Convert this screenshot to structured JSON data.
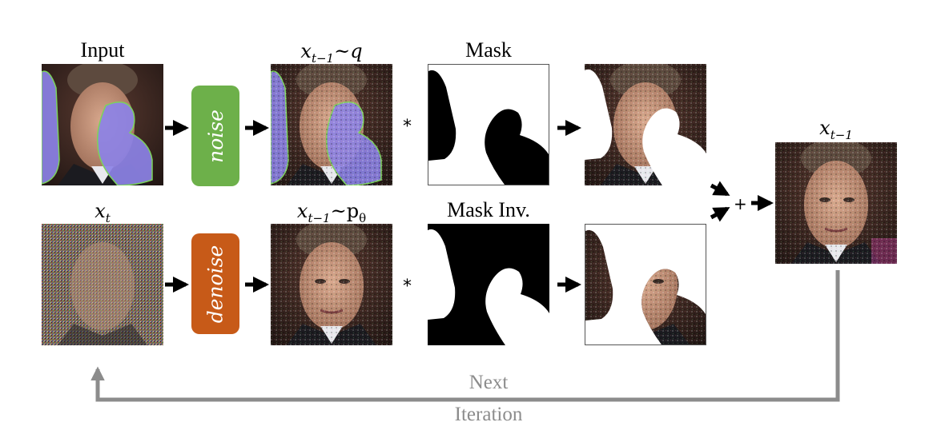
{
  "labels": {
    "input": "Input",
    "mask": "Mask",
    "mask_inv": "Mask Inv.",
    "x_t_base": "x",
    "x_t_sub": "t",
    "xt1q_base": "x",
    "xt1q_sub": "t−1",
    "xt1q_rest": "~q",
    "xt1p_base": "x",
    "xt1p_sub": "t−1",
    "xt1p_rest": "~p",
    "xt1p_theta": "θ",
    "out_base": "x",
    "out_sub": "t−1"
  },
  "ops": {
    "noise": "noise",
    "denoise": "denoise"
  },
  "symbols": {
    "multiply": "*",
    "plus": "+"
  },
  "loop": {
    "line1": "Next",
    "line2": "Iteration"
  },
  "colors": {
    "noise_box": "#6db04a",
    "denoise_box": "#c75a18",
    "mask_region": "#8c82e6",
    "loop_arrow": "#8c8c8c"
  }
}
